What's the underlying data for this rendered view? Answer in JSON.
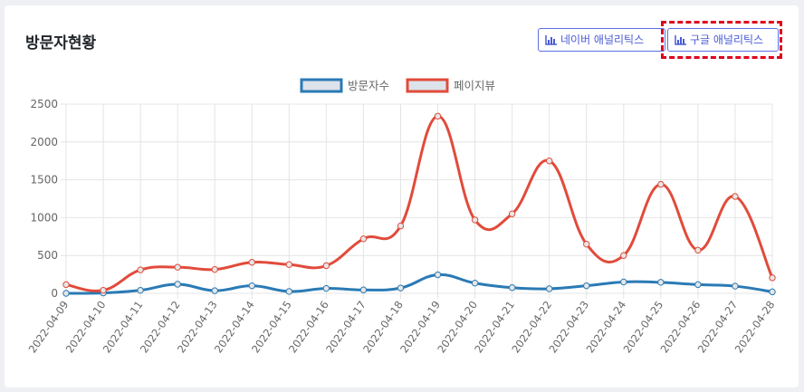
{
  "card": {
    "title": "방문자현황"
  },
  "buttons": {
    "naver_label": "네이버 애널리틱스",
    "google_label": "구글 애널리틱스"
  },
  "colors": {
    "visitors": "#2a7ab5",
    "pageviews": "#e14b3b",
    "highlight": "#e0001b",
    "button": "#5b6fe0"
  },
  "chart_data": {
    "type": "line",
    "legend_position": "top",
    "grid": true,
    "ylim": [
      0,
      2500
    ],
    "yticks": [
      0,
      500,
      1000,
      1500,
      2000,
      2500
    ],
    "categories": [
      "2022-04-09",
      "2022-04-10",
      "2022-04-11",
      "2022-04-12",
      "2022-04-13",
      "2022-04-14",
      "2022-04-15",
      "2022-04-16",
      "2022-04-17",
      "2022-04-18",
      "2022-04-19",
      "2022-04-20",
      "2022-04-21",
      "2022-04-22",
      "2022-04-23",
      "2022-04-24",
      "2022-04-25",
      "2022-04-26",
      "2022-04-27",
      "2022-04-28"
    ],
    "series": [
      {
        "name": "방문자수",
        "values": [
          0,
          5,
          40,
          120,
          35,
          100,
          25,
          65,
          45,
          70,
          245,
          135,
          75,
          60,
          100,
          150,
          145,
          115,
          95,
          20
        ]
      },
      {
        "name": "페이지뷰",
        "values": [
          115,
          40,
          310,
          345,
          315,
          410,
          380,
          365,
          720,
          890,
          2340,
          970,
          1050,
          1750,
          650,
          500,
          1440,
          570,
          1280,
          205
        ]
      }
    ]
  }
}
